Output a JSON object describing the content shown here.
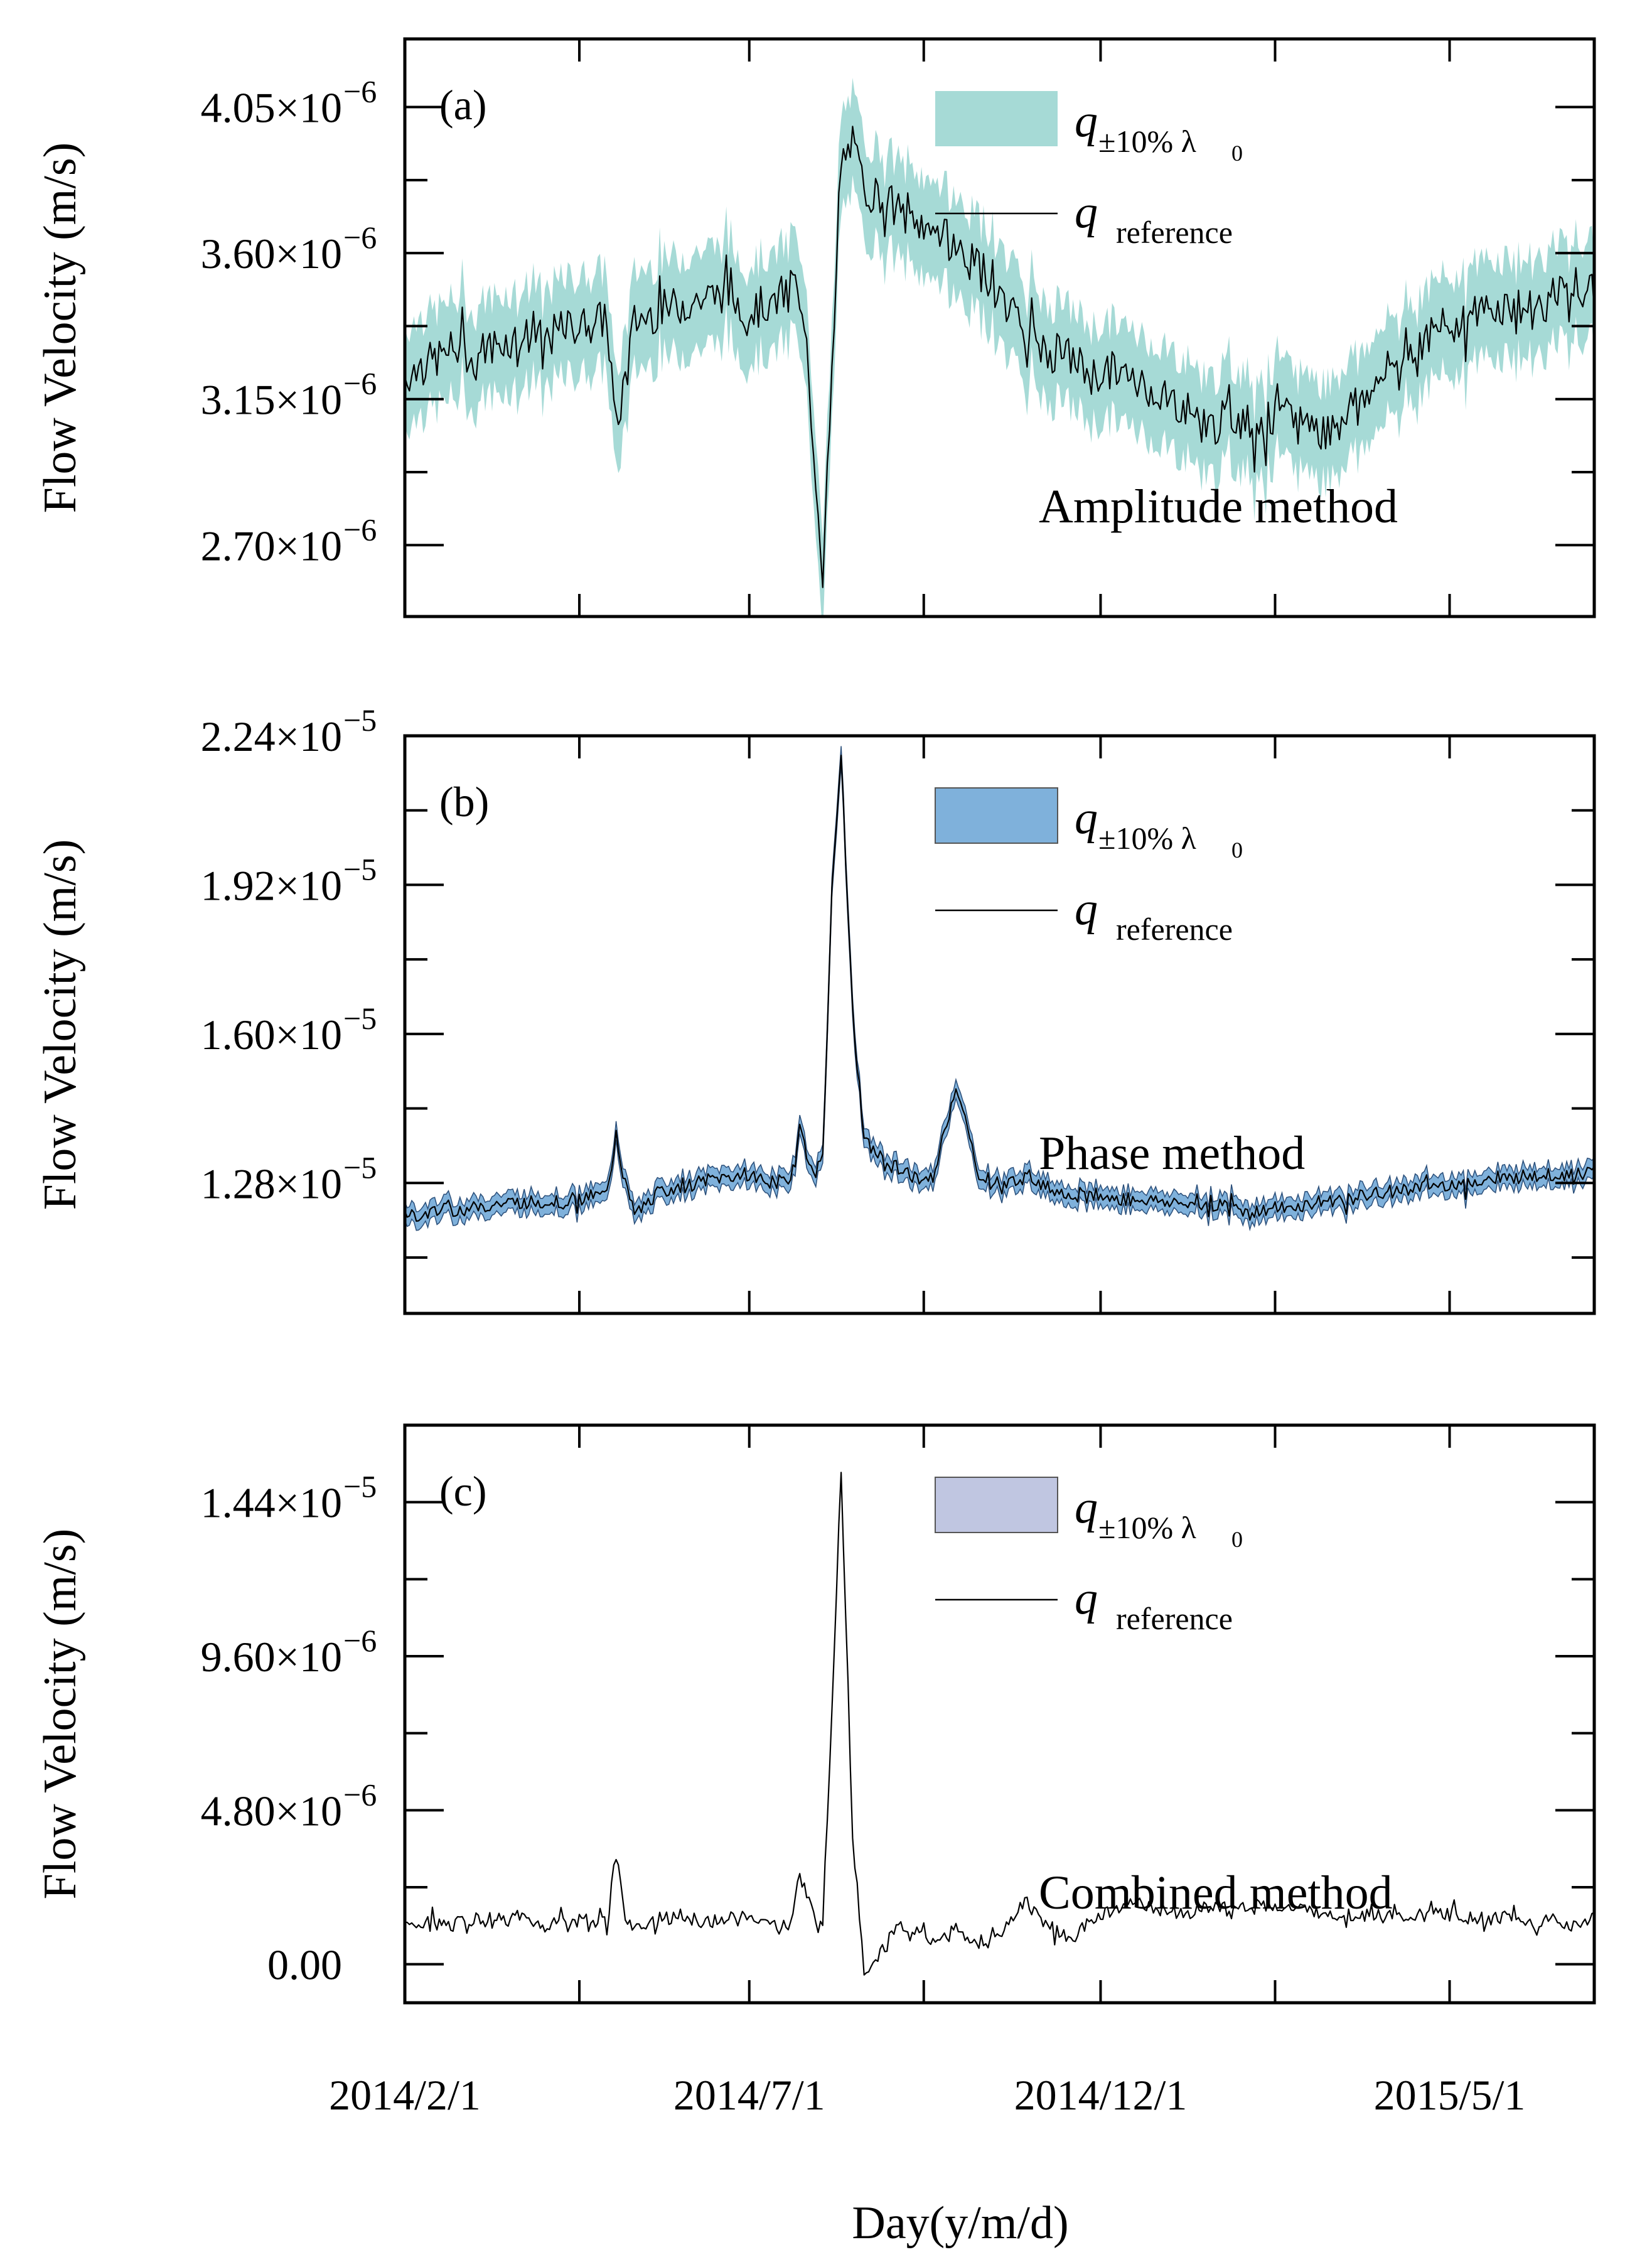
{
  "chart_data": [
    {
      "type": "area",
      "panel_label": "(a)",
      "method_label": "Amplitude method",
      "ylabel": "Flow Velocity (m/s)",
      "xlabel": "",
      "ylim": [
        2.48e-06,
        4.26e-06
      ],
      "y_ticks": [
        2.7e-06,
        3.15e-06,
        3.6e-06,
        4.05e-06
      ],
      "y_tick_labels": [
        {
          "mantissa": "2.70",
          "exponent": "−6"
        },
        {
          "mantissa": "3.15",
          "exponent": "−6"
        },
        {
          "mantissa": "3.60",
          "exponent": "−6"
        },
        {
          "mantissa": "4.05",
          "exponent": "−6"
        }
      ],
      "band_color": "#a6dad6",
      "band_half_width": 1.5e-07,
      "legend": {
        "band_symbol": "q",
        "band_subscript": "±10% λ",
        "band_subscript_index": "0",
        "line_symbol": "q",
        "line_subscript": "reference"
      },
      "series": [
        {
          "name": "q reference",
          "day": [
            0,
            10,
            20,
            30,
            40,
            50,
            60,
            70,
            80,
            88,
            92,
            100,
            110,
            120,
            130,
            140,
            150,
            160,
            170,
            175,
            182,
            186,
            190,
            195,
            200,
            210,
            220,
            230,
            240,
            250,
            260,
            270,
            280,
            290,
            300,
            310,
            320,
            330,
            340,
            350,
            360,
            370,
            380,
            390,
            400,
            410,
            420,
            430,
            440,
            450,
            460,
            470,
            480,
            490,
            500,
            510,
            518
          ],
          "values": [
            3.22e-06,
            3.26e-06,
            3.3e-06,
            3.29e-06,
            3.32e-06,
            3.35e-06,
            3.33e-06,
            3.37e-06,
            3.38e-06,
            3.4e-06,
            3.05e-06,
            3.39e-06,
            3.42e-06,
            3.44e-06,
            3.46e-06,
            3.48e-06,
            3.42e-06,
            3.45e-06,
            3.5e-06,
            3.3e-06,
            2.62e-06,
            3.2e-06,
            3.88e-06,
            3.93e-06,
            3.8e-06,
            3.76e-06,
            3.7e-06,
            3.68e-06,
            3.62e-06,
            3.55e-06,
            3.47e-06,
            3.36e-06,
            3.3e-06,
            3.28e-06,
            3.22e-06,
            3.24e-06,
            3.2e-06,
            3.17e-06,
            3.12e-06,
            3.06e-06,
            3.1e-06,
            3.07e-06,
            3.09e-06,
            3.1e-06,
            3.05e-06,
            3.12e-06,
            3.18e-06,
            3.25e-06,
            3.32e-06,
            3.36e-06,
            3.4e-06,
            3.42e-06,
            3.44e-06,
            3.42e-06,
            3.46e-06,
            3.5e-06,
            3.47e-06
          ]
        }
      ]
    },
    {
      "type": "area",
      "panel_label": "(b)",
      "method_label": "Phase method",
      "ylabel": "Flow Velocity (m/s)",
      "xlabel": "",
      "ylim": [
        1e-05,
        2.24e-05
      ],
      "y_ticks": [
        1.28e-05,
        1.6e-05,
        1.92e-05,
        2.24e-05
      ],
      "y_tick_labels": [
        {
          "mantissa": "1.28",
          "exponent": "−5"
        },
        {
          "mantissa": "1.60",
          "exponent": "−5"
        },
        {
          "mantissa": "1.92",
          "exponent": "−5"
        },
        {
          "mantissa": "2.24",
          "exponent": "−5"
        }
      ],
      "band_color": "#7fb1db",
      "band_half_width": 2e-07,
      "legend": {
        "band_symbol": "q",
        "band_subscript": "±10% λ",
        "band_subscript_index": "0",
        "line_symbol": "q",
        "line_subscript": "reference"
      },
      "series": [
        {
          "name": "q reference",
          "day": [
            0,
            10,
            20,
            30,
            40,
            50,
            60,
            70,
            80,
            88,
            92,
            96,
            100,
            110,
            120,
            130,
            140,
            150,
            160,
            168,
            172,
            178,
            182,
            186,
            190,
            195,
            200,
            210,
            215,
            220,
            225,
            230,
            240,
            250,
            260,
            270,
            280,
            290,
            300,
            310,
            320,
            330,
            340,
            350,
            360,
            370,
            380,
            390,
            400,
            410,
            420,
            430,
            440,
            450,
            460,
            470,
            480,
            490,
            500,
            510,
            518
          ],
          "values": [
            1.212e-05,
            1.214e-05,
            1.222e-05,
            1.225e-05,
            1.234e-05,
            1.24e-05,
            1.238e-05,
            1.242e-05,
            1.25e-05,
            1.255e-05,
            1.38e-05,
            1.275e-05,
            1.212e-05,
            1.258e-05,
            1.27e-05,
            1.284e-05,
            1.292e-05,
            1.3e-05,
            1.28e-05,
            1.29e-05,
            1.4e-05,
            1.29e-05,
            1.34e-05,
            1.9e-05,
            2.2e-05,
            1.65e-05,
            1.37e-05,
            1.32e-05,
            1.31e-05,
            1.3e-05,
            1.28e-05,
            1.29e-05,
            1.49e-05,
            1.3e-05,
            1.27e-05,
            1.3e-05,
            1.27e-05,
            1.255e-05,
            1.25e-05,
            1.245e-05,
            1.245e-05,
            1.24e-05,
            1.235e-05,
            1.232e-05,
            1.226e-05,
            1.22e-05,
            1.226e-05,
            1.23e-05,
            1.24e-05,
            1.245e-05,
            1.254e-05,
            1.262e-05,
            1.27e-05,
            1.274e-05,
            1.28e-05,
            1.286e-05,
            1.29e-05,
            1.295e-05,
            1.298e-05,
            1.3e-05,
            1.305e-05
          ]
        }
      ]
    },
    {
      "type": "area",
      "panel_label": "(c)",
      "method_label": "Combined method",
      "ylabel": "Flow Velocity (m/s)",
      "xlabel": "Day(y/m/d)",
      "ylim": [
        -1.2e-06,
        1.68e-05
      ],
      "y_ticks": [
        0,
        4.8e-06,
        9.6e-06,
        1.44e-05
      ],
      "y_tick_labels": [
        {
          "mantissa": "0.00",
          "exponent": ""
        },
        {
          "mantissa": "4.80",
          "exponent": "−6"
        },
        {
          "mantissa": "9.60",
          "exponent": "−6"
        },
        {
          "mantissa": "1.44",
          "exponent": "−5"
        }
      ],
      "band_color": "#c0c6e1",
      "band_half_width": 0,
      "legend": {
        "band_symbol": "q",
        "band_subscript": "±10% λ",
        "band_subscript_index": "0",
        "line_symbol": "q",
        "line_subscript": "reference"
      },
      "series": [
        {
          "name": "q reference",
          "day": [
            0,
            10,
            20,
            30,
            40,
            50,
            60,
            70,
            80,
            88,
            92,
            96,
            100,
            110,
            120,
            130,
            140,
            150,
            160,
            168,
            172,
            178,
            182,
            186,
            190,
            195,
            200,
            210,
            215,
            220,
            225,
            230,
            240,
            250,
            260,
            270,
            280,
            290,
            300,
            310,
            320,
            330,
            340,
            350,
            360,
            370,
            380,
            390,
            400,
            410,
            420,
            430,
            440,
            450,
            460,
            470,
            480,
            490,
            500,
            510,
            518
          ],
          "values": [
            1.2e-06,
            1.3e-06,
            1.2e-06,
            1.4e-06,
            1.3e-06,
            1.5e-06,
            1.2e-06,
            1.4e-06,
            1.3e-06,
            1.4e-06,
            3.4e-06,
            1.5e-06,
            1.2e-06,
            1.4e-06,
            1.5e-06,
            1.3e-06,
            1.4e-06,
            1.5e-06,
            1.2e-06,
            1.3e-06,
            2.8e-06,
            1.5e-06,
            1.4e-06,
            8e-06,
            1.55e-05,
            4e-06,
            -2e-07,
            6e-07,
            1.3e-06,
            8e-07,
            1.2e-06,
            7e-07,
            1.1e-06,
            5e-07,
            1e-06,
            2e-06,
            1.2e-06,
            8e-07,
            1.4e-06,
            1.8e-06,
            1.9e-06,
            1.7e-06,
            1.6e-06,
            1.8e-06,
            1.7e-06,
            1.9e-06,
            1.8e-06,
            1.7e-06,
            1.6e-06,
            1.5e-06,
            1.6e-06,
            1.4e-06,
            1.5e-06,
            1.6e-06,
            1.5e-06,
            1.4e-06,
            1.5e-06,
            1.3e-06,
            1.4e-06,
            1.2e-06,
            1.5e-06
          ]
        }
      ]
    }
  ],
  "x_axis": {
    "xlim_days": [
      0,
      518
    ],
    "major_tick_days": [
      0,
      76,
      150,
      226,
      303,
      379,
      455
    ],
    "label_days": [
      0,
      150,
      303,
      455
    ],
    "labels": [
      "2014/2/1",
      "2014/7/1",
      "2014/12/1",
      "2015/5/1"
    ],
    "title": "Day(y/m/d)"
  },
  "times_symbol": "×10",
  "tick_label_prefixes": [
    "",
    "",
    "",
    "0.00"
  ]
}
